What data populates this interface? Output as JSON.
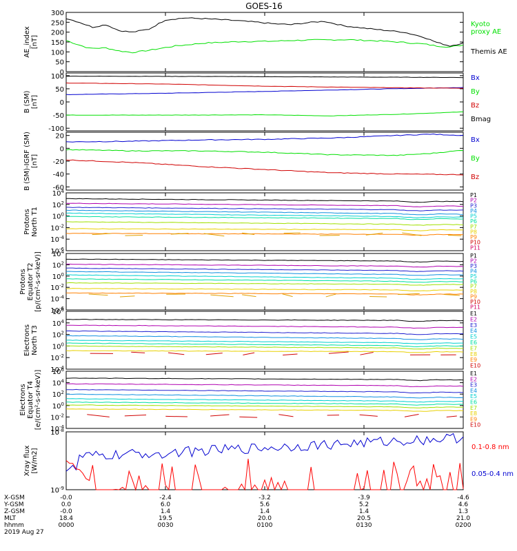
{
  "title": "GOES-16",
  "colors": {
    "black": "#000000",
    "green": "#00e000",
    "blue": "#0000d0",
    "red": "#d00000",
    "xray_red": "#ff0000",
    "ch": [
      "#000000",
      "#b000b0",
      "#2020d0",
      "#1090e0",
      "#00d0d0",
      "#00e0a0",
      "#a0e000",
      "#e8d000",
      "#ff8000",
      "#d00000",
      "#d00060"
    ]
  },
  "footer": {
    "rows": [
      {
        "label": "X-GSM",
        "values": [
          "-0.0",
          "-2.4",
          "-3.2",
          "-3.9",
          "-4.6"
        ]
      },
      {
        "label": "Y-GSM",
        "values": [
          "0.0",
          "6.0",
          "5.6",
          "5.2",
          "4.6"
        ]
      },
      {
        "label": "Z-GSM",
        "values": [
          "-0.0",
          "1.4",
          "1.4",
          "1.4",
          "1.3"
        ]
      },
      {
        "label": "MLT",
        "values": [
          "18.4",
          "19.5",
          "20.0",
          "20.5",
          "21.0"
        ]
      },
      {
        "label": "hhmm",
        "values": [
          "0000",
          "0030",
          "0100",
          "0130",
          "0200"
        ]
      }
    ],
    "date": "2019 Aug 27"
  },
  "chart_data": [
    {
      "type": "line",
      "id": "ae",
      "ylabel": [
        "AE_index",
        "[nT]"
      ],
      "ylim": [
        0,
        300
      ],
      "yticks": [
        0,
        50,
        100,
        150,
        200,
        250,
        300
      ],
      "x": [
        0,
        120
      ],
      "series": [
        {
          "name": "Kyoto proxy AE",
          "color_key": "green",
          "legend_lines": [
            "Kyoto",
            "proxy AE"
          ],
          "points": [
            [
              0,
              158
            ],
            [
              3,
              140
            ],
            [
              7,
              118
            ],
            [
              12,
              120
            ],
            [
              16,
              105
            ],
            [
              20,
              97
            ],
            [
              25,
              108
            ],
            [
              33,
              130
            ],
            [
              42,
              145
            ],
            [
              52,
              152
            ],
            [
              62,
              154
            ],
            [
              68,
              158
            ],
            [
              75,
              160
            ],
            [
              85,
              162
            ],
            [
              95,
              155
            ],
            [
              102,
              148
            ],
            [
              108,
              140
            ],
            [
              112,
              130
            ],
            [
              116,
              125
            ],
            [
              120,
              135
            ]
          ]
        },
        {
          "name": "Themis AE",
          "color_key": "black",
          "legend_lines": [
            "Themis AE"
          ],
          "points": [
            [
              0,
              270
            ],
            [
              4,
              250
            ],
            [
              8,
              225
            ],
            [
              12,
              238
            ],
            [
              16,
              208
            ],
            [
              20,
              200
            ],
            [
              25,
              215
            ],
            [
              30,
              262
            ],
            [
              36,
              272
            ],
            [
              42,
              268
            ],
            [
              50,
              260
            ],
            [
              58,
              250
            ],
            [
              63,
              242
            ],
            [
              68,
              238
            ],
            [
              73,
              248
            ],
            [
              78,
              255
            ],
            [
              84,
              232
            ],
            [
              90,
              220
            ],
            [
              96,
              210
            ],
            [
              102,
              200
            ],
            [
              108,
              175
            ],
            [
              112,
              148
            ],
            [
              116,
              130
            ],
            [
              120,
              145
            ]
          ]
        }
      ]
    },
    {
      "type": "line",
      "id": "bsm",
      "ylabel": [
        "B (SM)",
        "[nT]"
      ],
      "ylim": [
        -110,
        110
      ],
      "yticks": [
        -100,
        -50,
        0,
        50,
        100
      ],
      "x": [
        0,
        120
      ],
      "series": [
        {
          "name": "Bx",
          "color_key": "blue",
          "legend_lines": [
            "Bx"
          ],
          "points": [
            [
              0,
              28
            ],
            [
              30,
              33
            ],
            [
              60,
              40
            ],
            [
              90,
              48
            ],
            [
              120,
              55
            ]
          ]
        },
        {
          "name": "By",
          "color_key": "green",
          "legend_lines": [
            "By"
          ],
          "points": [
            [
              0,
              -50
            ],
            [
              30,
              -50
            ],
            [
              60,
              -49
            ],
            [
              80,
              -53
            ],
            [
              100,
              -47
            ],
            [
              120,
              -38
            ]
          ]
        },
        {
          "name": "Bz",
          "color_key": "red",
          "legend_lines": [
            "Bz"
          ],
          "points": [
            [
              0,
              72
            ],
            [
              30,
              68
            ],
            [
              60,
              60
            ],
            [
              90,
              55
            ],
            [
              120,
              52
            ]
          ]
        },
        {
          "name": "Bmag",
          "color_key": "black",
          "legend_lines": [
            "Bmag"
          ],
          "points": [
            [
              0,
              98
            ],
            [
              40,
              97
            ],
            [
              80,
              95
            ],
            [
              120,
              93
            ]
          ]
        }
      ]
    },
    {
      "type": "line",
      "id": "bigrf",
      "ylabel": [
        "B (SM)-IGRF (SM)",
        "[nT]"
      ],
      "ylim": [
        -65,
        25
      ],
      "yticks": [
        -60,
        -40,
        -20,
        0,
        20
      ],
      "x": [
        0,
        120
      ],
      "series": [
        {
          "name": "Bx",
          "color_key": "blue",
          "legend_lines": [
            "Bx"
          ],
          "points": [
            [
              0,
              10
            ],
            [
              20,
              11
            ],
            [
              40,
              13
            ],
            [
              60,
              14
            ],
            [
              80,
              16
            ],
            [
              100,
              20
            ],
            [
              110,
              22
            ],
            [
              120,
              20
            ]
          ]
        },
        {
          "name": "By",
          "color_key": "green",
          "legend_lines": [
            "By"
          ],
          "points": [
            [
              0,
              -2
            ],
            [
              20,
              -4
            ],
            [
              40,
              -4
            ],
            [
              60,
              -6
            ],
            [
              80,
              -10
            ],
            [
              100,
              -11
            ],
            [
              110,
              -8
            ],
            [
              120,
              -3
            ]
          ]
        },
        {
          "name": "Bz",
          "color_key": "red",
          "legend_lines": [
            "Bz"
          ],
          "points": [
            [
              0,
              -18
            ],
            [
              20,
              -22
            ],
            [
              40,
              -28
            ],
            [
              60,
              -33
            ],
            [
              80,
              -38
            ],
            [
              100,
              -40
            ],
            [
              120,
              -41
            ]
          ]
        }
      ]
    },
    {
      "type": "line",
      "id": "pn",
      "log": true,
      "ylabel": [
        "Protons",
        "North T1"
      ],
      "ylim": [
        -6,
        4
      ],
      "yticks": [
        -6,
        -4,
        -2,
        0,
        2,
        4
      ],
      "x": [
        0,
        120
      ],
      "legend": [
        "P1",
        "P2",
        "P3",
        "P4",
        "P5",
        "P6",
        "P7",
        "P8",
        "P9",
        "P10",
        "P11"
      ],
      "levels": [
        [
          3.0,
          2.5
        ],
        [
          2.2,
          1.7
        ],
        [
          1.5,
          1.0
        ],
        [
          1.0,
          0.3
        ],
        [
          0.5,
          -0.2
        ],
        [
          -0.1,
          -0.5
        ],
        [
          -1.0,
          -1.5
        ],
        [
          -2.2,
          -2.4
        ],
        [
          -3.0,
          -3.2
        ]
      ],
      "fragment_level": -3.2
    },
    {
      "type": "line",
      "id": "pe",
      "log": true,
      "ylabel": [
        "Protons",
        "Equator T2",
        "[p/(cm²-s-sr-keV)]"
      ],
      "ylim": [
        -6,
        4
      ],
      "yticks": [
        -6,
        -4,
        -2,
        0,
        2,
        4
      ],
      "x": [
        0,
        120
      ],
      "legend": [
        "P1",
        "P2",
        "P3",
        "P4",
        "P5",
        "P6",
        "P7",
        "P8",
        "P9",
        "P10",
        "P11"
      ],
      "levels": [
        [
          3.0,
          2.6
        ],
        [
          2.1,
          1.7
        ],
        [
          1.4,
          0.9
        ],
        [
          0.8,
          0.2
        ],
        [
          0.2,
          -0.5
        ],
        [
          -0.5,
          -1.0
        ],
        [
          -1.2,
          -1.5
        ],
        [
          -2.2,
          -2.5
        ],
        [
          -3.0,
          -3.2
        ]
      ],
      "fragment_level": -3.4
    },
    {
      "type": "line",
      "id": "en",
      "log": true,
      "ylabel": [
        "Electrons",
        "North T3"
      ],
      "ylim": [
        -4,
        6
      ],
      "yticks": [
        -4,
        -2,
        0,
        2,
        4,
        6
      ],
      "x": [
        0,
        120
      ],
      "legend": [
        "E1",
        "E2",
        "E3",
        "E4",
        "E5",
        "E6",
        "E7",
        "E8",
        "E9",
        "E10"
      ],
      "levels": [
        [
          4.6,
          4.4
        ],
        [
          3.6,
          3.2
        ],
        [
          2.6,
          2.1
        ],
        [
          1.8,
          1.2
        ],
        [
          1.0,
          0.5
        ],
        [
          0.5,
          0.0
        ],
        [
          0.0,
          -0.4
        ],
        [
          -0.8,
          -1.0
        ]
      ],
      "fragment_level": -1.3
    },
    {
      "type": "line",
      "id": "ee",
      "log": true,
      "ylabel": [
        "Electrons",
        "Equator T4",
        "[e/(cm²-s-sr-keV)]"
      ],
      "ylim": [
        -4,
        6
      ],
      "yticks": [
        -4,
        -2,
        0,
        2,
        4,
        6
      ],
      "x": [
        0,
        120
      ],
      "legend": [
        "E1",
        "E2",
        "E3",
        "E4",
        "E5",
        "E6",
        "E7",
        "E8",
        "E9",
        "E10"
      ],
      "levels": [
        [
          4.8,
          4.5
        ],
        [
          3.8,
          3.4
        ],
        [
          2.8,
          2.3
        ],
        [
          2.0,
          1.4
        ],
        [
          1.2,
          0.7
        ],
        [
          0.6,
          0.2
        ],
        [
          0.1,
          -0.3
        ],
        [
          -0.6,
          -0.9
        ]
      ],
      "fragment_level": -1.8
    },
    {
      "type": "line",
      "id": "xray",
      "log": true,
      "ylabel": [
        "Xray flux",
        "[W/m2]"
      ],
      "ylim": [
        -9,
        -8
      ],
      "yticks": [
        -9,
        -8
      ],
      "x": [
        0,
        120
      ],
      "series": [
        {
          "name": "0.1-0.8 nm",
          "color_key": "xray_red"
        },
        {
          "name": "0.05-0.4 nm",
          "color_key": "blue"
        }
      ]
    }
  ]
}
